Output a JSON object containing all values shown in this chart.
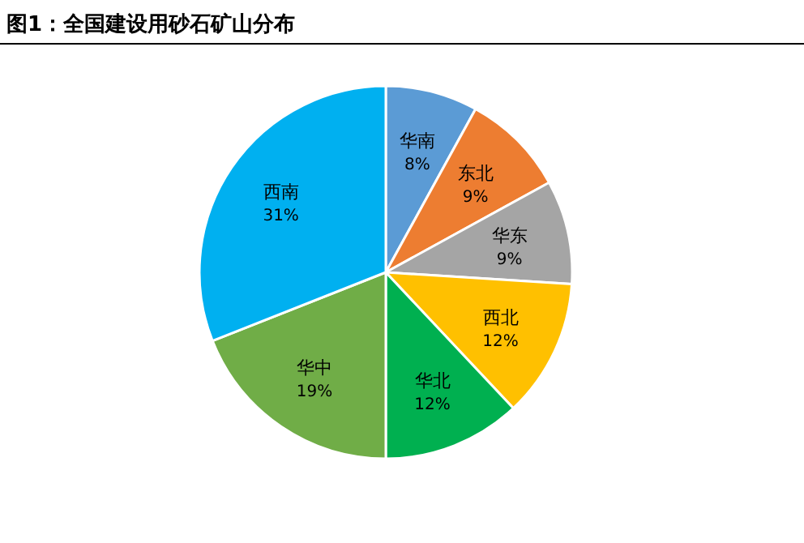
{
  "chart_data": {
    "type": "pie",
    "title": "图1：全国建设用砂石矿山分布",
    "categories": [
      "华南",
      "东北",
      "华东",
      "西北",
      "华北",
      "华中",
      "西南"
    ],
    "values": [
      8,
      9,
      9,
      12,
      12,
      19,
      31
    ],
    "value_labels": [
      "8%",
      "9%",
      "9%",
      "12%",
      "12%",
      "19%",
      "31%"
    ],
    "colors": [
      "#5b9bd5",
      "#ed7d31",
      "#a5a5a5",
      "#ffc000",
      "#00b050",
      "#70ad47",
      "#00b0f0"
    ]
  }
}
